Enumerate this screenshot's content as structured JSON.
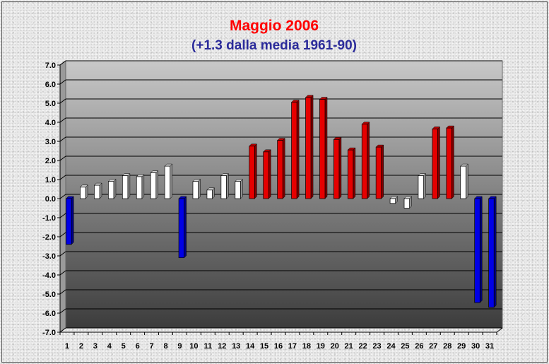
{
  "chart_data": {
    "type": "bar",
    "title": "Maggio 2006",
    "subtitle": "(+1.3 dalla media 1961-90)",
    "xlabel": "",
    "ylabel": "",
    "ylim": [
      -7.0,
      7.0
    ],
    "ytick_step": 1.0,
    "grid": true,
    "categories": [
      "1",
      "2",
      "3",
      "4",
      "5",
      "6",
      "7",
      "8",
      "9",
      "10",
      "11",
      "12",
      "13",
      "14",
      "15",
      "16",
      "17",
      "18",
      "19",
      "20",
      "21",
      "22",
      "23",
      "24",
      "25",
      "26",
      "27",
      "28",
      "29",
      "30",
      "31"
    ],
    "values": [
      -2.4,
      0.6,
      0.7,
      0.9,
      1.2,
      1.15,
      1.35,
      1.7,
      -3.1,
      0.9,
      0.45,
      1.2,
      0.9,
      2.75,
      2.45,
      3.05,
      5.05,
      5.3,
      5.2,
      3.1,
      2.55,
      3.9,
      2.7,
      -0.25,
      -0.5,
      1.2,
      3.65,
      3.7,
      1.7,
      -5.45,
      -5.7
    ],
    "bar_colors": {
      "high": "#e60000",
      "normal": "#ffffff",
      "low": "#0000e6"
    },
    "plot_background_top": "#c8c8c8",
    "plot_background_bottom": "#3c3c3c"
  }
}
